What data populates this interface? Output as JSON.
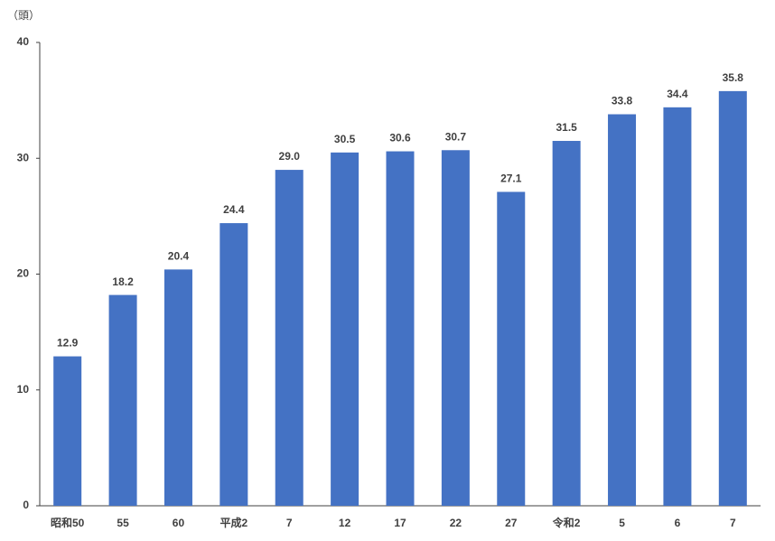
{
  "chart_data": {
    "type": "bar",
    "y_axis_label": "（頭）",
    "categories": [
      "昭和50",
      "55",
      "60",
      "平成2",
      "7",
      "12",
      "17",
      "22",
      "27",
      "令和2",
      "5",
      "6",
      "7"
    ],
    "values": [
      12.9,
      18.2,
      20.4,
      24.4,
      29.0,
      30.5,
      30.6,
      30.7,
      27.1,
      31.5,
      33.8,
      34.4,
      35.8
    ],
    "value_labels": [
      "12.9",
      "18.2",
      "20.4",
      "24.4",
      "29.0",
      "30.5",
      "30.6",
      "30.7",
      "27.1",
      "31.5",
      "33.8",
      "34.4",
      "35.8"
    ],
    "color": "#4472c4",
    "ylim": [
      0,
      40
    ],
    "yticks": [
      0,
      10,
      20,
      30,
      40
    ],
    "grid": false
  }
}
